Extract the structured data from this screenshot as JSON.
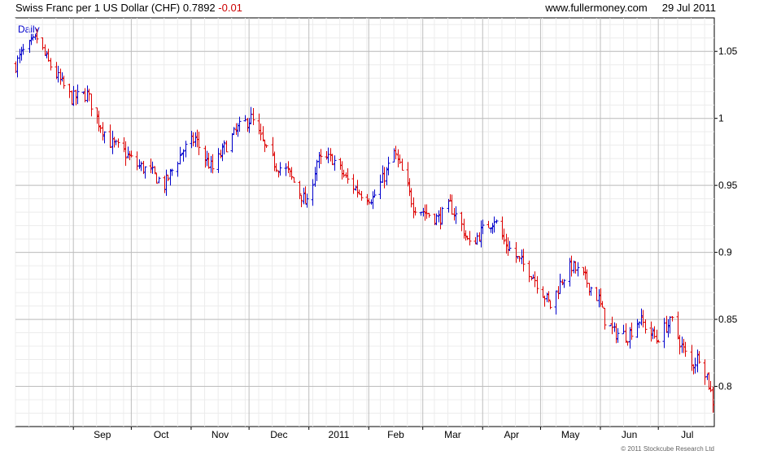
{
  "header": {
    "title": "Swiss Franc per 1 US Dollar (CHF)",
    "last": "0.7892",
    "change": "-0.01",
    "site": "www.fullermoney.com",
    "date": "29 Jul 2011"
  },
  "period_label": "Daily",
  "copyright": "© 2011 Stockcube Research Ltd",
  "colors": {
    "up": "#0000cc",
    "down": "#dd0000",
    "grid": "#dddddd",
    "frame": "#000000"
  },
  "chart_data": {
    "type": "ohlc",
    "ylim": [
      0.77,
      1.075
    ],
    "yticks": [
      0.8,
      0.85,
      0.9,
      0.95,
      1,
      1.05
    ],
    "ytick_labels": [
      "0.8",
      "0.85",
      "0.9",
      "0.95",
      "1",
      "1.05"
    ],
    "xlim": [
      "2010-08-02",
      "2011-07-30"
    ],
    "xticks": [
      {
        "date": "2010-09-01",
        "label": "Sep"
      },
      {
        "date": "2010-10-01",
        "label": "Oct"
      },
      {
        "date": "2010-11-01",
        "label": "Nov"
      },
      {
        "date": "2010-12-01",
        "label": "Dec"
      },
      {
        "date": "2011-01-01",
        "label": "2011"
      },
      {
        "date": "2011-02-01",
        "label": "Feb"
      },
      {
        "date": "2011-03-01",
        "label": "Mar"
      },
      {
        "date": "2011-04-01",
        "label": "Apr"
      },
      {
        "date": "2011-05-01",
        "label": "May"
      },
      {
        "date": "2011-06-01",
        "label": "Jun"
      },
      {
        "date": "2011-07-01",
        "label": "Jul"
      }
    ],
    "close_path": [
      [
        "2010-08-02",
        1.04
      ],
      [
        "2010-08-05",
        1.048
      ],
      [
        "2010-08-10",
        1.055
      ],
      [
        "2010-08-13",
        1.06
      ],
      [
        "2010-08-18",
        1.044
      ],
      [
        "2010-08-24",
        1.03
      ],
      [
        "2010-08-31",
        1.015
      ],
      [
        "2010-09-08",
        1.018
      ],
      [
        "2010-09-13",
        1.0
      ],
      [
        "2010-09-20",
        0.982
      ],
      [
        "2010-09-27",
        0.975
      ],
      [
        "2010-10-04",
        0.965
      ],
      [
        "2010-10-11",
        0.96
      ],
      [
        "2010-10-18",
        0.95
      ],
      [
        "2010-10-27",
        0.975
      ],
      [
        "2010-11-03",
        0.985
      ],
      [
        "2010-11-08",
        0.97
      ],
      [
        "2010-11-12",
        0.962
      ],
      [
        "2010-11-18",
        0.978
      ],
      [
        "2010-11-25",
        0.992
      ],
      [
        "2010-11-30",
        0.998
      ],
      [
        "2010-12-02",
        1.0
      ],
      [
        "2010-12-07",
        0.985
      ],
      [
        "2010-12-10",
        0.975
      ],
      [
        "2010-12-15",
        0.965
      ],
      [
        "2010-12-21",
        0.96
      ],
      [
        "2010-12-27",
        0.945
      ],
      [
        "2010-12-31",
        0.935
      ],
      [
        "2011-01-05",
        0.968
      ],
      [
        "2011-01-13",
        0.97
      ],
      [
        "2011-01-20",
        0.955
      ],
      [
        "2011-01-27",
        0.945
      ],
      [
        "2011-02-03",
        0.94
      ],
      [
        "2011-02-10",
        0.96
      ],
      [
        "2011-02-14",
        0.975
      ],
      [
        "2011-02-18",
        0.96
      ],
      [
        "2011-02-24",
        0.935
      ],
      [
        "2011-03-02",
        0.93
      ],
      [
        "2011-03-09",
        0.925
      ],
      [
        "2011-03-15",
        0.935
      ],
      [
        "2011-03-21",
        0.92
      ],
      [
        "2011-03-25",
        0.905
      ],
      [
        "2011-03-31",
        0.915
      ],
      [
        "2011-04-07",
        0.925
      ],
      [
        "2011-04-12",
        0.908
      ],
      [
        "2011-04-19",
        0.895
      ],
      [
        "2011-04-26",
        0.885
      ],
      [
        "2011-05-02",
        0.87
      ],
      [
        "2011-05-06",
        0.86
      ],
      [
        "2011-05-12",
        0.88
      ],
      [
        "2011-05-17",
        0.89
      ],
      [
        "2011-05-24",
        0.88
      ],
      [
        "2011-05-31",
        0.865
      ],
      [
        "2011-06-03",
        0.85
      ],
      [
        "2011-06-08",
        0.84
      ],
      [
        "2011-06-15",
        0.838
      ],
      [
        "2011-06-21",
        0.85
      ],
      [
        "2011-06-27",
        0.84
      ],
      [
        "2011-06-30",
        0.835
      ],
      [
        "2011-07-05",
        0.845
      ],
      [
        "2011-07-08",
        0.848
      ],
      [
        "2011-07-13",
        0.83
      ],
      [
        "2011-07-18",
        0.815
      ],
      [
        "2011-07-22",
        0.823
      ],
      [
        "2011-07-26",
        0.808
      ],
      [
        "2011-07-29",
        0.789
      ]
    ]
  }
}
